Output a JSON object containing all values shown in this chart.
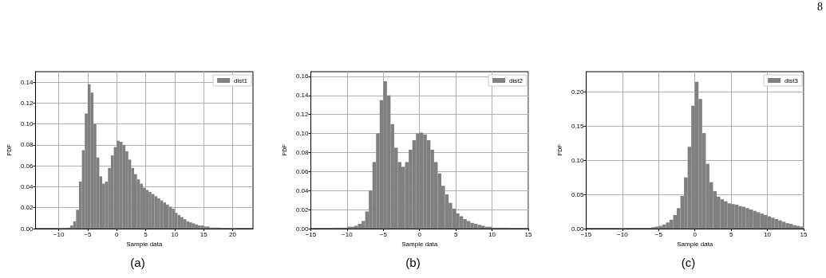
{
  "chart_data": [
    {
      "type": "histogram",
      "xlabel": "Sample data",
      "ylabel": "PDF",
      "annotations": [
        "(a)"
      ],
      "legend": "top right",
      "grid": true,
      "xlim": [
        -14,
        23.5
      ],
      "xticks": [
        {
          "value": -10,
          "label": "−10"
        },
        {
          "value": -5,
          "label": "−5"
        },
        0,
        5,
        10,
        15,
        20
      ],
      "ylim": [
        0,
        0.15
      ],
      "yticks": [
        {
          "value": 0,
          "label": "0.00"
        },
        0.02,
        0.04,
        0.06,
        0.08,
        {
          "value": 0.1,
          "label": "0.10"
        },
        0.12,
        0.14
      ],
      "bins": [
        -10,
        -9.5,
        -9,
        -8.5,
        -8,
        -7.5,
        -7,
        -6.5,
        -6,
        -5.5,
        -5,
        -4.5,
        -4,
        -3.5,
        -3,
        -2.5,
        -2,
        -1.5,
        -1,
        -0.5,
        0,
        0.5,
        1,
        1.5,
        2,
        2.5,
        3,
        3.5,
        4,
        4.5,
        5,
        5.5,
        6,
        6.5,
        7,
        7.5,
        8,
        8.5,
        9,
        9.5,
        10,
        10.5,
        11,
        11.5,
        12,
        12.5,
        13,
        13.5,
        14,
        14.5,
        15,
        15.5,
        16,
        16.5,
        17,
        17.5,
        18,
        18.5,
        19,
        19.5,
        20,
        20.5,
        21,
        21.5,
        22
      ],
      "series": [
        {
          "name": "dist1",
          "color": "#808080",
          "values": [
            0,
            0,
            0,
            0.001,
            0.003,
            0.007,
            0.018,
            0.045,
            0.075,
            0.11,
            0.138,
            0.13,
            0.1,
            0.068,
            0.05,
            0.043,
            0.045,
            0.058,
            0.07,
            0.078,
            0.084,
            0.083,
            0.08,
            0.074,
            0.066,
            0.058,
            0.052,
            0.047,
            0.043,
            0.039,
            0.037,
            0.035,
            0.033,
            0.031,
            0.029,
            0.027,
            0.025,
            0.023,
            0.021,
            0.019,
            0.015,
            0.013,
            0.011,
            0.009,
            0.007,
            0.006,
            0.005,
            0.004,
            0.003,
            0.003,
            0.002,
            0.002,
            0.001,
            0.001,
            0.001,
            0.001,
            0,
            0,
            0,
            0,
            0,
            0,
            0,
            0
          ]
        }
      ]
    },
    {
      "type": "histogram",
      "xlabel": "Sample data",
      "ylabel": "PDF",
      "annotations": [
        "(b)"
      ],
      "legend": "top right",
      "grid": true,
      "xlim": [
        -15,
        15
      ],
      "xticks": [
        {
          "value": -15,
          "label": "−15"
        },
        {
          "value": -10,
          "label": "−10"
        },
        {
          "value": -5,
          "label": "−5"
        },
        0,
        5,
        10,
        15
      ],
      "ylim": [
        0,
        0.165
      ],
      "yticks": [
        {
          "value": 0,
          "label": "0.00"
        },
        0.02,
        0.04,
        0.06,
        0.08,
        {
          "value": 0.1,
          "label": "0.10"
        },
        0.12,
        0.14,
        0.16
      ],
      "bins": [
        -12,
        -11.5,
        -11,
        -10.5,
        -10,
        -9.5,
        -9,
        -8.5,
        -8,
        -7.5,
        -7,
        -6.5,
        -6,
        -5.5,
        -5,
        -4.5,
        -4,
        -3.5,
        -3,
        -2.5,
        -2,
        -1.5,
        -1,
        -0.5,
        0,
        0.5,
        1,
        1.5,
        2,
        2.5,
        3,
        3.5,
        4,
        4.5,
        5,
        5.5,
        6,
        6.5,
        7,
        7.5,
        8,
        8.5,
        9,
        9.5,
        10,
        10.5,
        11,
        11.5,
        12
      ],
      "series": [
        {
          "name": "dist2",
          "color": "#808080",
          "values": [
            0,
            0.001,
            0.001,
            0.001,
            0.002,
            0.002,
            0.003,
            0.005,
            0.008,
            0.018,
            0.04,
            0.07,
            0.1,
            0.135,
            0.155,
            0.14,
            0.11,
            0.085,
            0.07,
            0.065,
            0.07,
            0.083,
            0.093,
            0.1,
            0.101,
            0.099,
            0.093,
            0.083,
            0.07,
            0.058,
            0.045,
            0.036,
            0.027,
            0.021,
            0.016,
            0.013,
            0.01,
            0.008,
            0.006,
            0.005,
            0.004,
            0.003,
            0.002,
            0.002,
            0.001,
            0.001,
            0.001,
            0.001
          ]
        }
      ]
    },
    {
      "type": "histogram",
      "xlabel": "Sample data",
      "ylabel": "PDF",
      "annotations": [
        "(c)",
        "8"
      ],
      "legend": "top right",
      "grid": true,
      "xlim": [
        -15,
        15
      ],
      "xticks": [
        {
          "value": -15,
          "label": "−15"
        },
        {
          "value": -10,
          "label": "−10"
        },
        {
          "value": -5,
          "label": "−5"
        },
        0,
        5,
        10,
        15
      ],
      "ylim": [
        0,
        0.23
      ],
      "yticks": [
        {
          "value": 0,
          "label": "0.00"
        },
        0.05,
        {
          "value": 0.1,
          "label": "0.10"
        },
        0.15,
        {
          "value": 0.2,
          "label": "0.20"
        }
      ],
      "bins": [
        -7,
        -6.5,
        -6,
        -5.5,
        -5,
        -4.5,
        -4,
        -3.5,
        -3,
        -2.5,
        -2,
        -1.5,
        -1,
        -0.5,
        0,
        0.5,
        1,
        1.5,
        2,
        2.5,
        3,
        3.5,
        4,
        4.5,
        5,
        5.5,
        6,
        6.5,
        7,
        7.5,
        8,
        8.5,
        9,
        9.5,
        10,
        10.5,
        11,
        11.5,
        12,
        12.5,
        13,
        13.5,
        14,
        14.5,
        15
      ],
      "series": [
        {
          "name": "dist3",
          "color": "#808080",
          "values": [
            0.001,
            0.001,
            0.002,
            0.003,
            0.004,
            0.006,
            0.009,
            0.013,
            0.02,
            0.03,
            0.048,
            0.075,
            0.12,
            0.18,
            0.215,
            0.19,
            0.14,
            0.095,
            0.068,
            0.055,
            0.047,
            0.043,
            0.04,
            0.037,
            0.036,
            0.035,
            0.033,
            0.032,
            0.03,
            0.028,
            0.026,
            0.024,
            0.022,
            0.02,
            0.018,
            0.016,
            0.014,
            0.012,
            0.01,
            0.008,
            0.007,
            0.005,
            0.004,
            0.003
          ]
        }
      ]
    }
  ]
}
